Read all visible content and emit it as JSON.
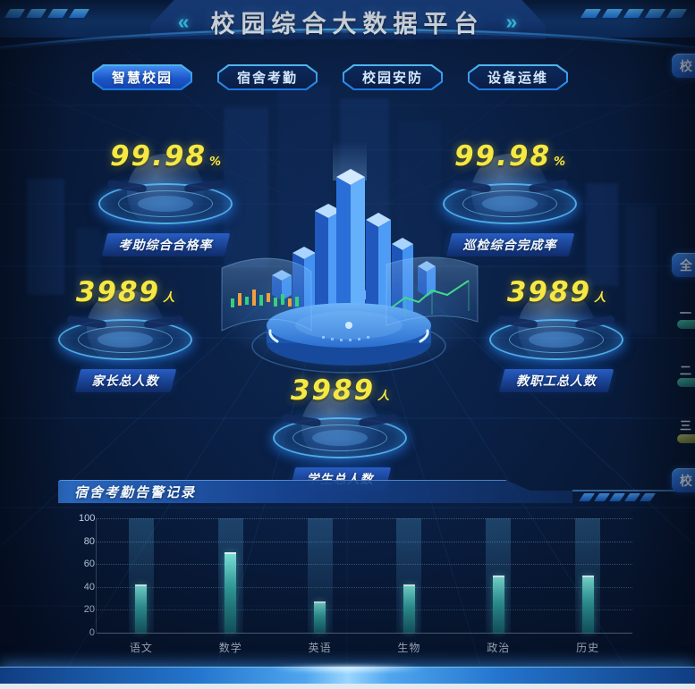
{
  "header": {
    "title": "校园综合大数据平台",
    "left_arrow": "«",
    "right_arrow": "»"
  },
  "tabs": [
    {
      "label": "智慧校园",
      "active": true
    },
    {
      "label": "宿舍考勤",
      "active": false
    },
    {
      "label": "校园安防",
      "active": false
    },
    {
      "label": "设备运维",
      "active": false
    }
  ],
  "stats": [
    {
      "value": "99.98",
      "unit": "%",
      "label": "考助综合合格率"
    },
    {
      "value": "99.98",
      "unit": "%",
      "label": "巡检综合完成率"
    },
    {
      "value": "3989",
      "unit": "人",
      "label": "家长总人数"
    },
    {
      "value": "3989",
      "unit": "人",
      "label": "教职工总人数"
    },
    {
      "value": "3989",
      "unit": "人",
      "label": "学生总人数"
    }
  ],
  "bottom_panel": {
    "title": "宿舍考勤告警记录"
  },
  "chart_data": {
    "type": "bar",
    "title": "宿舍考勤告警记录",
    "categories": [
      "语文",
      "数学",
      "英语",
      "生物",
      "政治",
      "历史"
    ],
    "values": [
      42,
      70,
      27,
      42,
      50,
      50
    ],
    "xlabel": "",
    "ylabel": "",
    "ylim": [
      0,
      100
    ],
    "yticks": [
      0,
      20,
      40,
      60,
      80,
      100
    ],
    "grid": "horizontal-dotted",
    "legend": "none",
    "bar_color": "#3bbdb4",
    "band_color": "rgba(75,155,205,0.30)"
  },
  "right_edge": {
    "top_tab_label": "校",
    "middle_tab_label": "全",
    "items": [
      {
        "label": "一",
        "bar_color_top": "#46c2a8",
        "bar_color_bottom": "#247f78"
      },
      {
        "label": "二",
        "bar_color_top": "#46c2a8",
        "bar_color_bottom": "#247f78"
      },
      {
        "label": "三",
        "bar_color_top": "#b9c25e",
        "bar_color_bottom": "#7d8a3e"
      }
    ],
    "bottom_tab_label": "校"
  },
  "colors": {
    "accent_cyan": "#35c8ff",
    "accent_blue": "#1f6fe0",
    "number_yellow": "#f6e843",
    "bar_teal": "#3bbdb4",
    "background": "#071630"
  }
}
